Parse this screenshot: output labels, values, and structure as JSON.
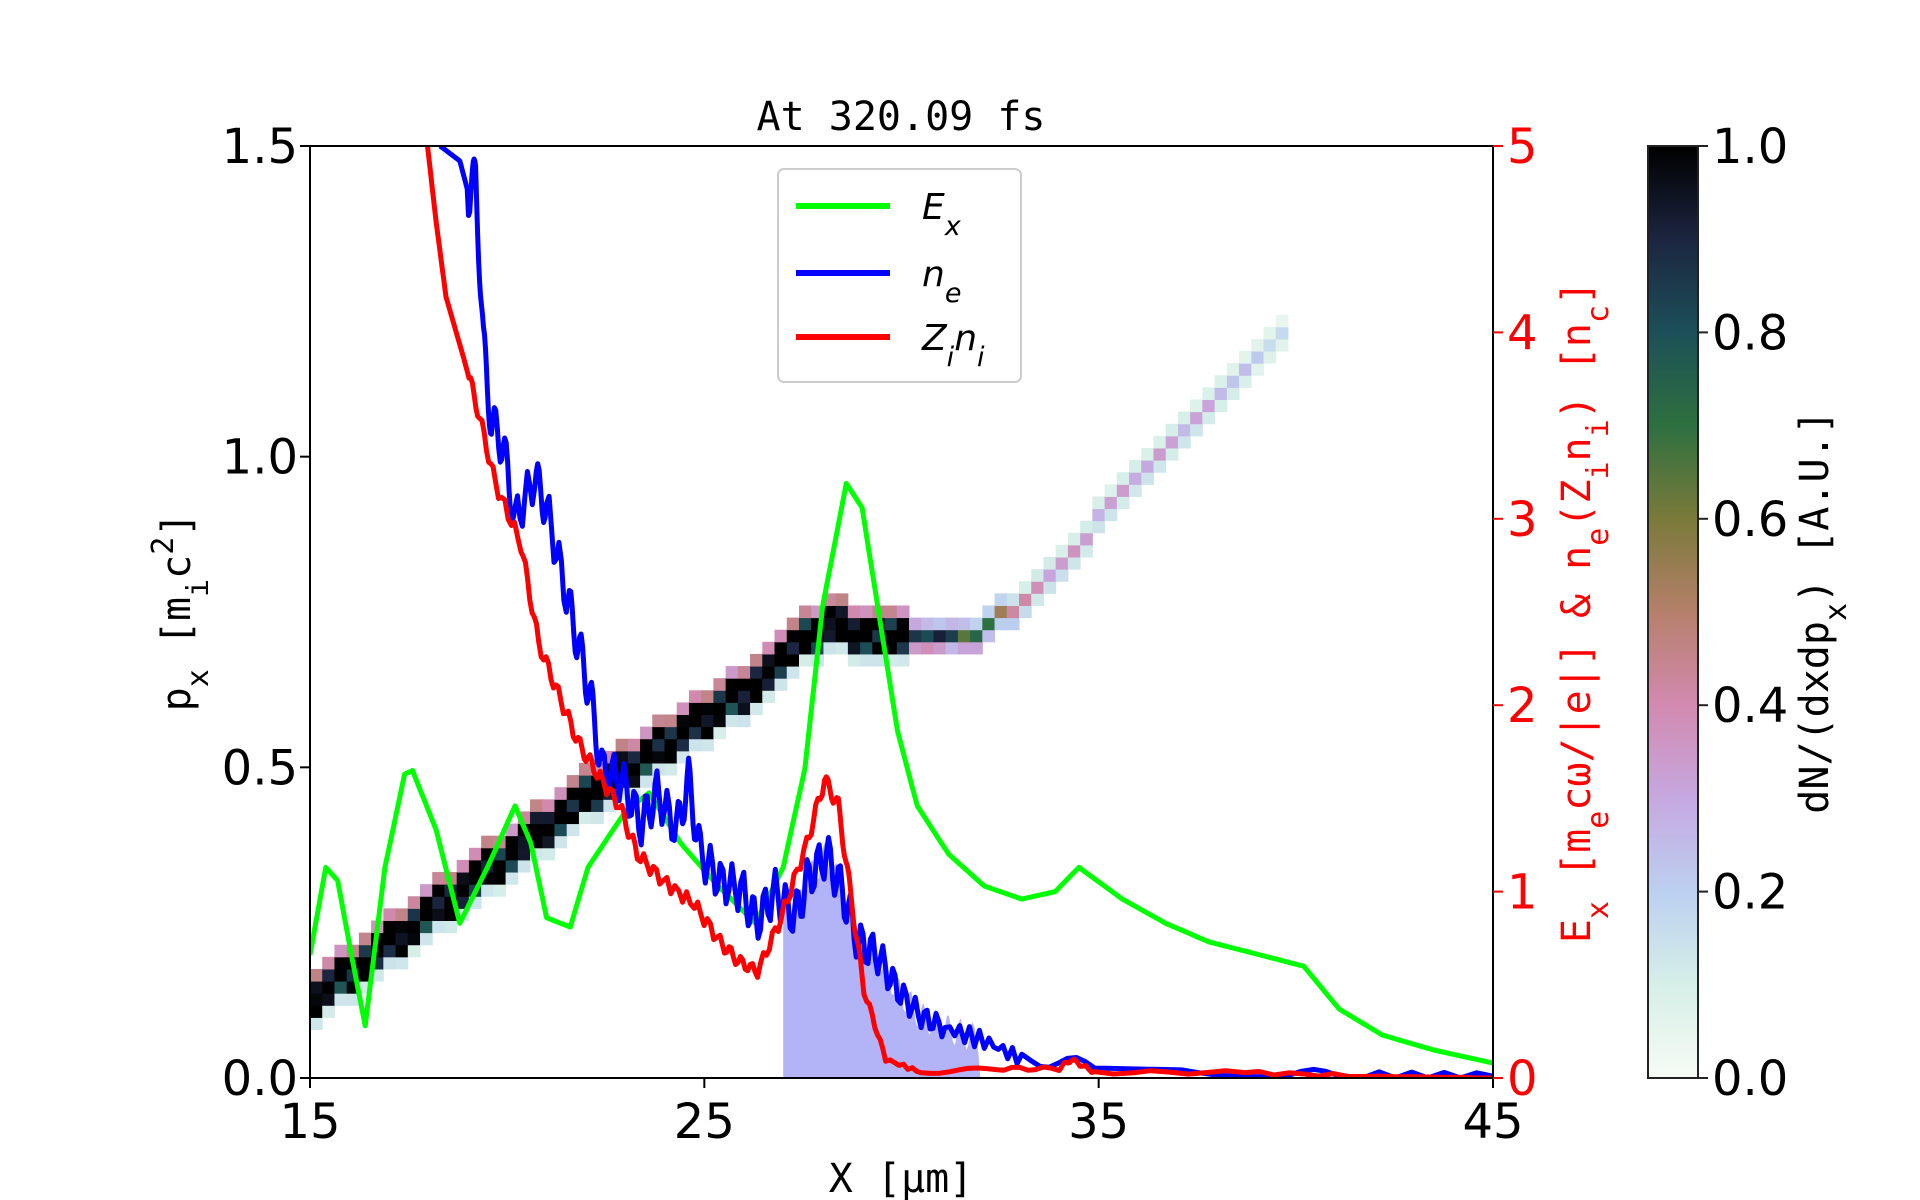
{
  "chart_data": {
    "type": "line",
    "title": "At 320.09 fs",
    "xlabel": "X [μm]",
    "ylabel_left": "p_x [m_ic^2]",
    "ylabel_right": "E_x [m_ecω/|e|] & n_e(Z_in_i) [n_c]",
    "colorbar_label": "dN/(dxdp_x) [A.U.]",
    "xlim": [
      15,
      45
    ],
    "ylim_left": [
      0,
      1.5
    ],
    "ylim_right": [
      0,
      5
    ],
    "clim": [
      0,
      1
    ],
    "xticks": [
      "15",
      "25",
      "35",
      "45"
    ],
    "xtick_values": [
      15,
      25,
      35,
      45
    ],
    "yticks_left": [
      "0.0",
      "0.5",
      "1.0",
      "1.5"
    ],
    "ytick_left_values": [
      0,
      0.5,
      1.0,
      1.5
    ],
    "yticks_right": [
      "0",
      "1",
      "2",
      "3",
      "4",
      "5"
    ],
    "ytick_right_values": [
      0,
      1,
      2,
      3,
      4,
      5
    ],
    "cticks": [
      "0.0",
      "0.2",
      "0.4",
      "0.6",
      "0.8",
      "1.0"
    ],
    "ctick_values": [
      0,
      0.2,
      0.4,
      0.6,
      0.8,
      1.0
    ],
    "grid": false,
    "legend_placement": "top-center",
    "right_axis_color": "#ff0000",
    "series": [
      {
        "name": "E_x",
        "axis": "right",
        "color": "#00ff00",
        "x": [
          15,
          15.4,
          15.7,
          16.05,
          16.4,
          16.9,
          17.4,
          17.6,
          18.2,
          18.8,
          19.5,
          20.2,
          20.6,
          21.0,
          21.6,
          22.05,
          23.0,
          23.6,
          24.4,
          25.35,
          26.3,
          27.0,
          27.55,
          28.0,
          28.6,
          29.0,
          29.45,
          29.9,
          30.4,
          31.2,
          32.1,
          33.05,
          33.9,
          34.5,
          35.6,
          36.7,
          37.8,
          39.1,
          40.2,
          41.1,
          42.2,
          43.5,
          45
        ],
        "y": [
          0.66,
          1.13,
          1.06,
          0.66,
          0.28,
          1.13,
          1.63,
          1.65,
          1.33,
          0.83,
          1.13,
          1.46,
          1.26,
          0.86,
          0.81,
          1.13,
          1.43,
          1.53,
          1.26,
          1.03,
          0.83,
          1.13,
          1.66,
          2.53,
          3.19,
          3.06,
          2.46,
          1.86,
          1.46,
          1.2,
          1.03,
          0.96,
          1.0,
          1.13,
          0.96,
          0.83,
          0.73,
          0.66,
          0.6,
          0.37,
          0.23,
          0.15,
          0.08
        ]
      },
      {
        "name": "n_e",
        "axis": "right",
        "color": "#0000ff",
        "x": [
          18.3,
          18.8,
          19.05,
          19.2,
          19.4,
          19.6,
          19.9,
          20.2,
          20.7,
          21.0,
          21.5,
          21.8,
          22.1,
          22.4,
          22.9,
          23.4,
          23.8,
          24.3,
          24.6,
          24.9,
          25.4,
          26.0,
          26.3,
          26.8,
          27.3,
          27.6,
          28.1,
          28.5,
          28.9,
          29.4,
          29.9,
          30.5,
          31.1,
          32.1,
          33.05,
          34.9,
          37.1,
          39.2,
          41.7,
          45
        ],
        "y": [
          5,
          4.92,
          4.72,
          4.85,
          3.92,
          3.52,
          3.39,
          2.99,
          3.22,
          3.06,
          2.59,
          2.33,
          2.06,
          1.66,
          1.6,
          1.36,
          1.53,
          1.33,
          1.6,
          1.2,
          1.06,
          1.0,
          0.83,
          1.0,
          0.86,
          1.06,
          1.2,
          1.0,
          0.73,
          0.66,
          0.47,
          0.33,
          0.27,
          0.2,
          0.1,
          0.07,
          0.05,
          0.03,
          0.01,
          0.01
        ]
      },
      {
        "name": "Z_in_i",
        "axis": "right",
        "color": "#ff0000",
        "x": [
          17.98,
          18.2,
          18.45,
          18.9,
          19.25,
          19.7,
          20.35,
          20.8,
          21.3,
          21.8,
          22.2,
          22.85,
          23.3,
          23.95,
          24.75,
          25.4,
          25.85,
          26.35,
          26.95,
          27.6,
          28.05,
          28.4,
          28.7,
          29.05,
          29.6,
          30.5,
          32.4,
          34,
          34.3,
          34.9,
          38.7,
          41.7,
          45
        ],
        "y": [
          5,
          4.59,
          4.19,
          3.86,
          3.59,
          3.19,
          2.86,
          2.33,
          2.06,
          1.8,
          1.66,
          1.46,
          1.2,
          1.06,
          0.93,
          0.73,
          0.63,
          0.57,
          0.86,
          1.26,
          1.6,
          1.46,
          1.0,
          0.47,
          0.1,
          0.03,
          0.05,
          0.05,
          0.1,
          0.03,
          0.03,
          0.01,
          0
        ]
      }
    ],
    "shaded_region": {
      "series": "n_e",
      "x_range": [
        27,
        32
      ],
      "color": "#b3b3f7"
    },
    "heatmap_band": {
      "x": [
        15,
        17.5,
        22.2,
        26,
        27.9,
        29.1,
        31.7,
        33.05,
        35,
        37.2,
        39.6
      ],
      "y": [
        0.12,
        0.24,
        0.46,
        0.62,
        0.72,
        0.7,
        0.71,
        0.76,
        0.9,
        1.04,
        1.2
      ],
      "intensity": [
        1.0,
        1.0,
        1.0,
        1.0,
        1.0,
        1.0,
        0.7,
        0.35,
        0.3,
        0.3,
        0.15
      ]
    }
  }
}
